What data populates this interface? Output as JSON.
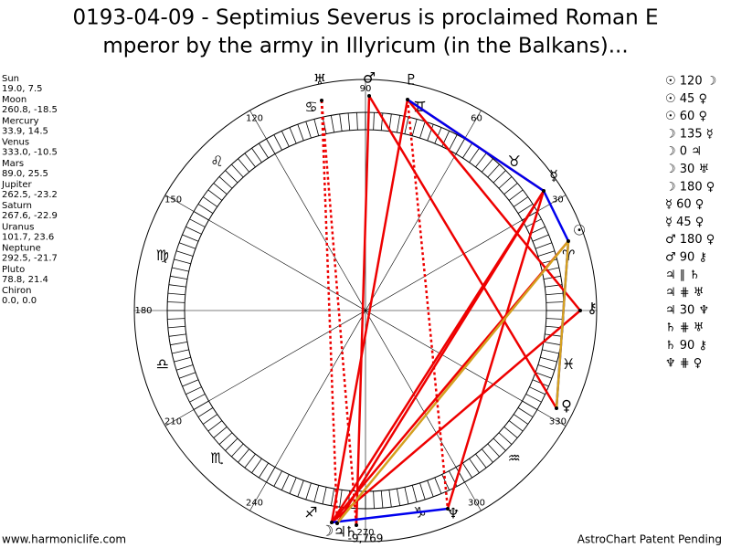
{
  "title": [
    "0193-04-09 - Septimius Severus is proclaimed Roman E",
    "mperor by the army in Illyricum (in the Balkans)..."
  ],
  "planets": [
    {
      "name": "Sun",
      "position": "19.0, 7.5",
      "glyph": "☉"
    },
    {
      "name": "Moon",
      "position": "260.8, -18.5",
      "glyph": "☽"
    },
    {
      "name": "Mercury",
      "position": "33.9, 14.5",
      "glyph": "☿"
    },
    {
      "name": "Venus",
      "position": "333.0, -10.5",
      "glyph": "♀"
    },
    {
      "name": "Mars",
      "position": "89.0, 25.5",
      "glyph": "♂"
    },
    {
      "name": "Jupiter",
      "position": "262.5, -23.2",
      "glyph": "♃"
    },
    {
      "name": "Saturn",
      "position": "267.6, -22.9",
      "glyph": "♄"
    },
    {
      "name": "Uranus",
      "position": "101.7, 23.6",
      "glyph": "♅"
    },
    {
      "name": "Neptune",
      "position": "292.5, -21.7",
      "glyph": "♆"
    },
    {
      "name": "Pluto",
      "position": "78.8, 21.4",
      "glyph": "♇"
    },
    {
      "name": "Chiron",
      "position": "0.0, 0.0",
      "glyph": "⚷"
    }
  ],
  "aspects": [
    "☉ 120 ☽",
    "☉ 45 ♀",
    "☉ 60 ♀",
    "☽ 135 ☿",
    "☽ 0 ♃",
    "☽ 30 ♅",
    "☽ 180 ♀",
    "☿ 60 ♀",
    "☿ 45 ♀",
    "♂ 180 ♀",
    "♂ 90 ⚷",
    "♃ ∥ ♄",
    "♃ ⋕ ♅",
    "♃ 30 ♆",
    "♄ ⋕ ♅",
    "♄ 90 ⚷",
    "♆ ⋕ ♀"
  ],
  "signs": [
    "♈",
    "♉",
    "♊",
    "♋",
    "♌",
    "♍",
    "♎",
    "♏",
    "♐",
    "♑",
    "♒",
    "♓"
  ],
  "degrees": [
    "30",
    "60",
    "90",
    "120",
    "150",
    "180",
    "210",
    "240",
    "270",
    "300",
    "330"
  ],
  "center_value": "-9,769",
  "footer": {
    "left": "www.harmoniclife.com",
    "right": "AstroChart Patent Pending"
  }
}
